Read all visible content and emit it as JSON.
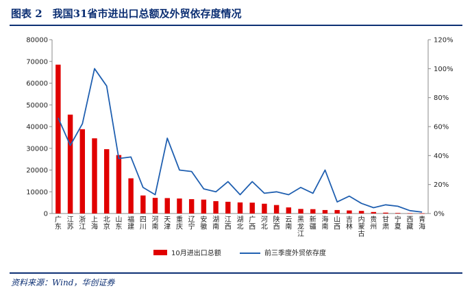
{
  "header": {
    "title": "图表 2　我国31省市进出口总额及外贸依存度情况"
  },
  "source": "资料来源：Wind，华创证券",
  "chart_data": {
    "type": "bar",
    "categories": [
      "广东",
      "江苏",
      "浙江",
      "上海",
      "北京",
      "山东",
      "福建",
      "四川",
      "河南",
      "天津",
      "重庆",
      "辽宁",
      "安徽",
      "湖南",
      "江西",
      "湖北",
      "广西",
      "河北",
      "陕西",
      "云南",
      "黑龙江",
      "新疆",
      "海南",
      "山西",
      "吉林",
      "内蒙古",
      "贵州",
      "甘肃",
      "宁夏",
      "西藏",
      "青海"
    ],
    "series": [
      {
        "name": "10月进出口总额",
        "type": "bar",
        "axis": "left",
        "color": "#e00000",
        "values": [
          68500,
          45500,
          38800,
          34600,
          29600,
          26900,
          16200,
          8300,
          7200,
          7100,
          6900,
          6600,
          6400,
          5700,
          5400,
          5100,
          5000,
          4500,
          3900,
          2800,
          2100,
          2000,
          1600,
          1600,
          1400,
          1200,
          700,
          400,
          250,
          120,
          80
        ]
      },
      {
        "name": "前三季度外贸依存度",
        "type": "line",
        "axis": "right",
        "color": "#1f5fb0",
        "values": [
          66,
          47,
          62,
          100,
          88,
          38,
          39,
          18,
          13,
          52,
          30,
          29,
          17,
          15,
          22,
          13,
          22,
          14,
          15,
          13,
          18,
          14,
          30,
          8,
          12,
          7,
          4,
          6,
          5,
          2,
          1
        ]
      }
    ],
    "y_left": {
      "min": 0,
      "max": 80000,
      "ticks": [
        "0",
        "10000",
        "20000",
        "30000",
        "40000",
        "50000",
        "60000",
        "70000",
        "80000"
      ]
    },
    "y_right": {
      "min": 0,
      "max": 120,
      "ticks": [
        "0%",
        "20%",
        "40%",
        "60%",
        "80%",
        "100%",
        "120%"
      ]
    },
    "grid": false,
    "legend_position": "bottom"
  }
}
